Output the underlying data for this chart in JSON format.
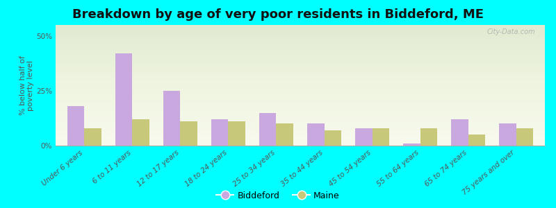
{
  "title": "Breakdown by age of very poor residents in Biddeford, ME",
  "ylabel": "% below half of\npoverty level",
  "categories": [
    "Under 6 years",
    "6 to 11 years",
    "12 to 17 years",
    "18 to 24 years",
    "25 to 34 years",
    "35 to 44 years",
    "45 to 54 years",
    "55 to 64 years",
    "65 to 74 years",
    "75 years and over"
  ],
  "biddeford": [
    18,
    42,
    25,
    12,
    15,
    10,
    8,
    1,
    12,
    10
  ],
  "maine": [
    8,
    12,
    11,
    11,
    10,
    7,
    8,
    8,
    5,
    8
  ],
  "biddeford_color": "#c9a8e0",
  "maine_color": "#c8c87a",
  "background_color": "#00ffff",
  "ylim": [
    0,
    55
  ],
  "yticks": [
    0,
    25,
    50
  ],
  "ytick_labels": [
    "0%",
    "25%",
    "50%"
  ],
  "bar_width": 0.35,
  "title_fontsize": 13,
  "axis_label_fontsize": 8,
  "tick_fontsize": 7.5,
  "legend_labels": [
    "Biddeford",
    "Maine"
  ],
  "watermark": "City-Data.com"
}
